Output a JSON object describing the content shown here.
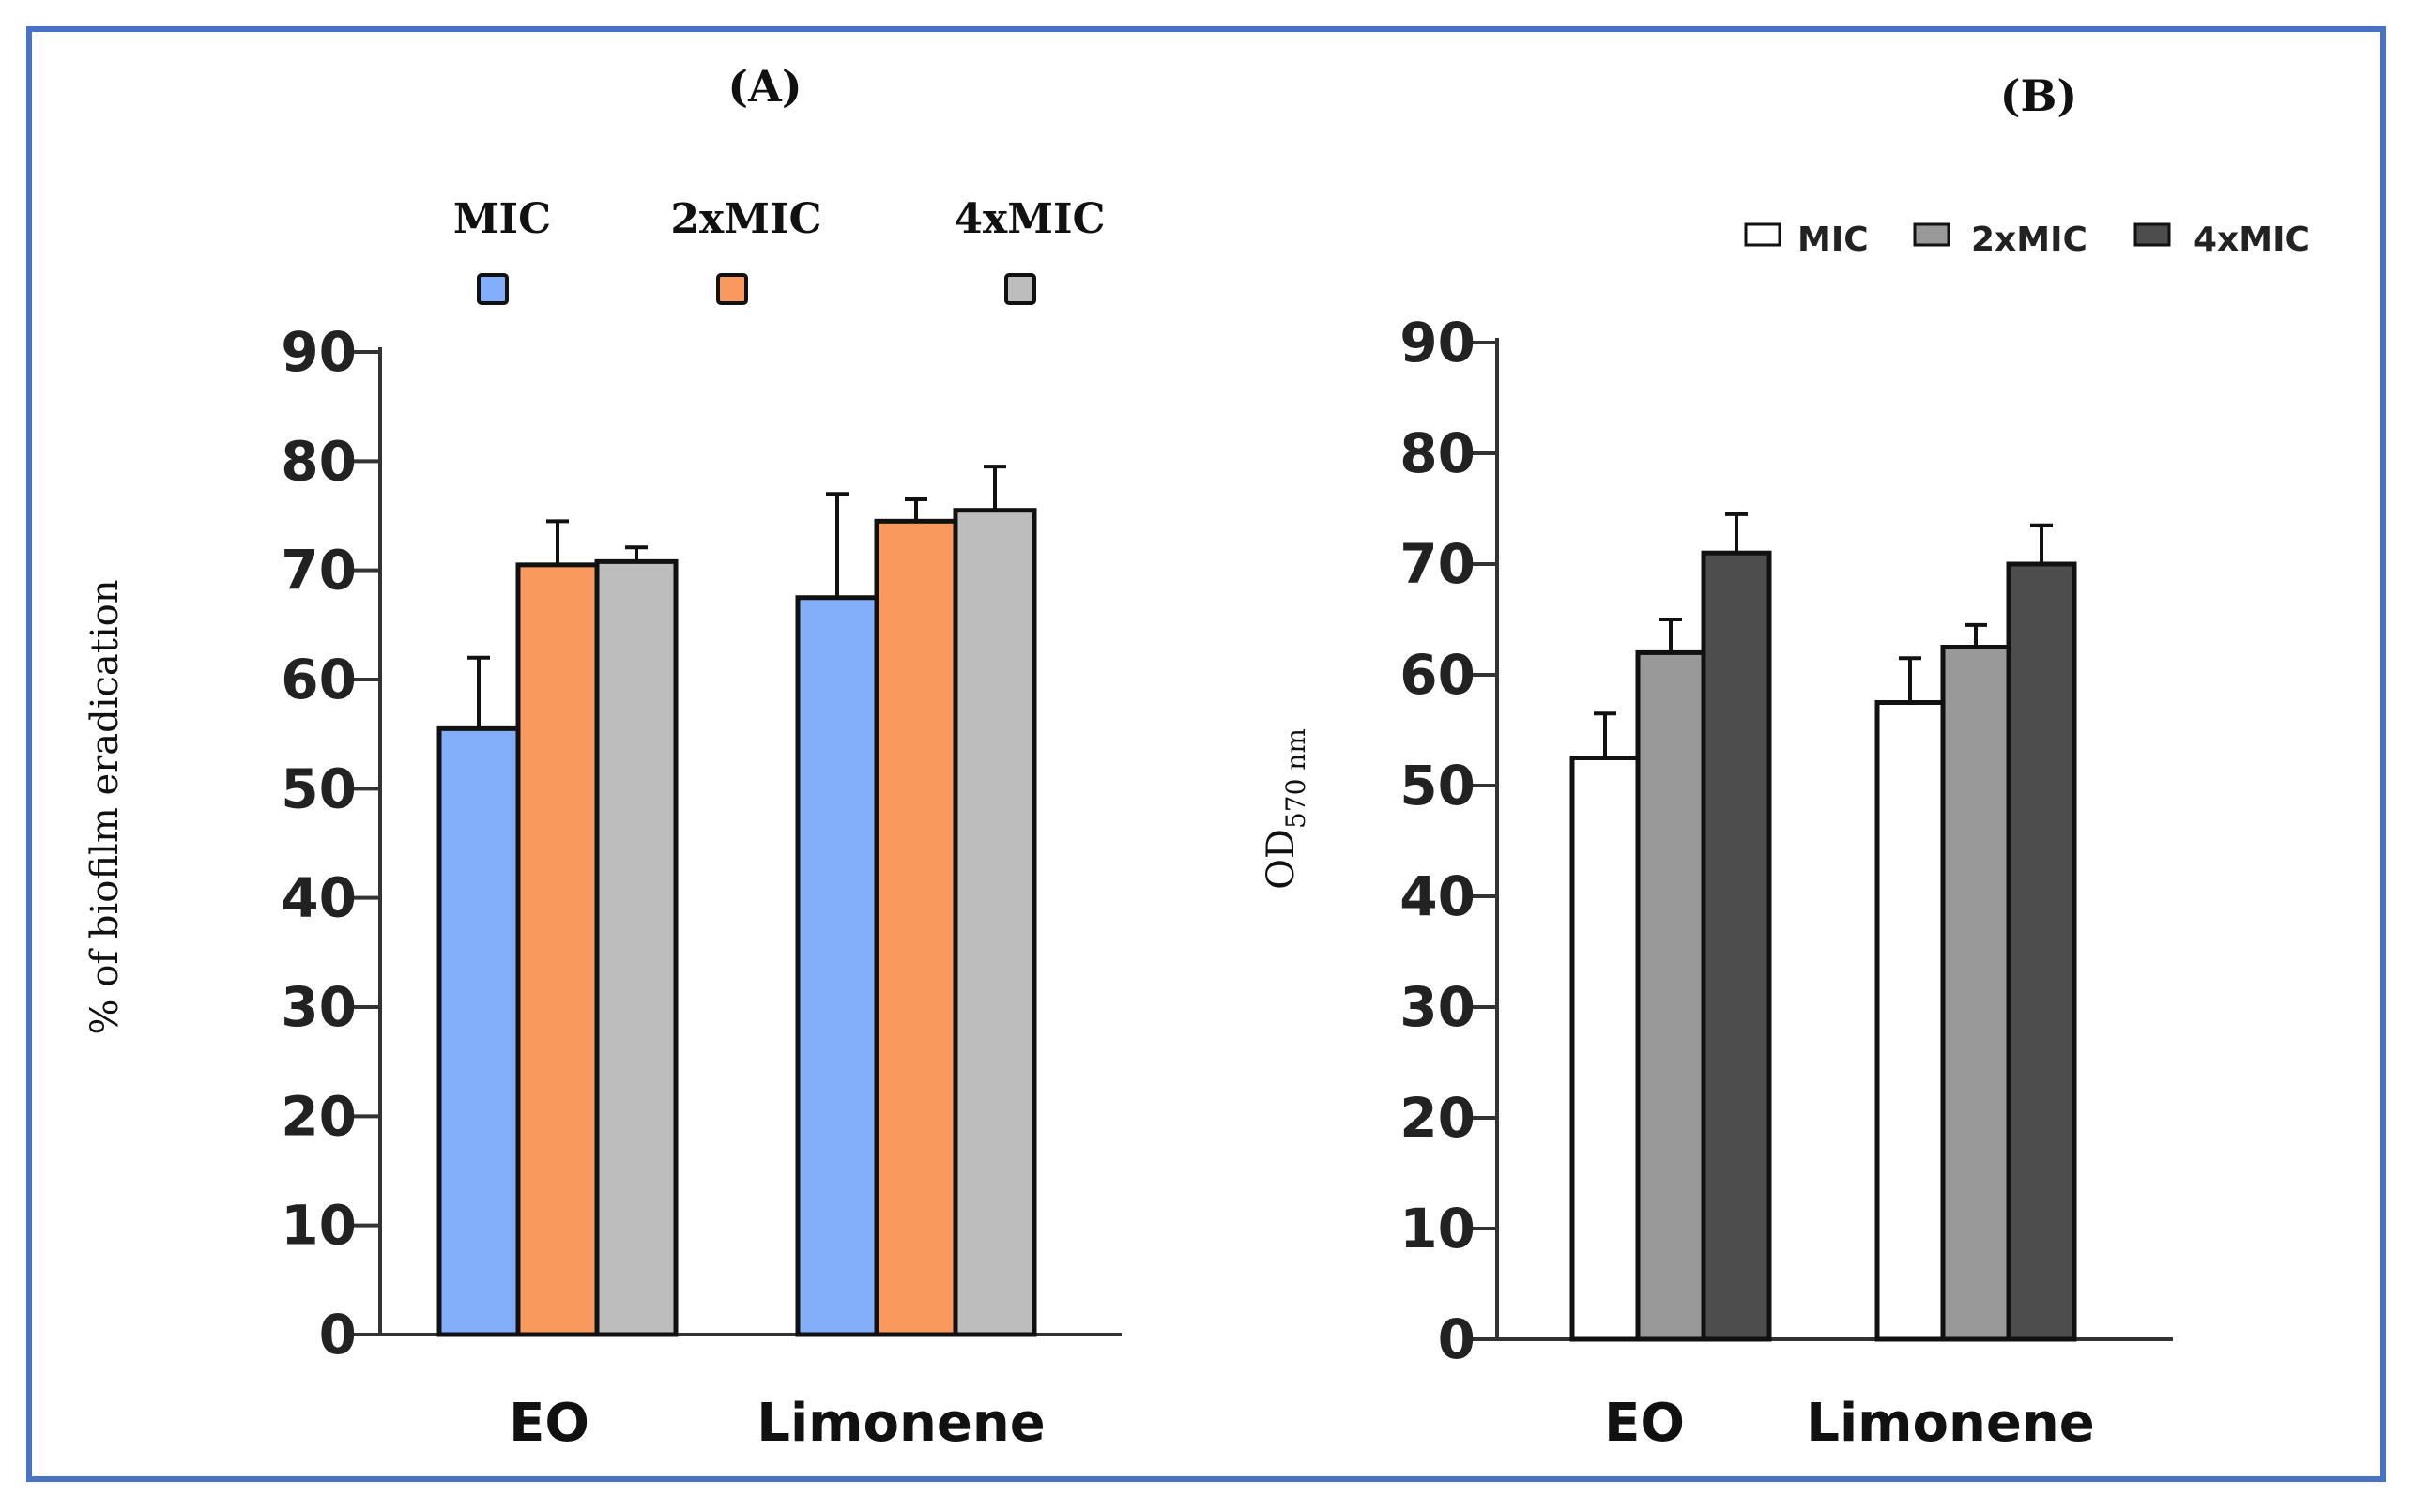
{
  "chart_data": [
    {
      "type": "bar",
      "panel_label": "(A)",
      "categories": [
        "EO",
        "Limonene"
      ],
      "ylabel": "% of biofilm eradication",
      "ylim": [
        0,
        90
      ],
      "yticks": [
        0,
        10,
        20,
        30,
        40,
        50,
        60,
        70,
        80,
        90
      ],
      "legend_placement": "top",
      "series": [
        {
          "name": "MIC",
          "color": "#82aefa",
          "values": [
            55.5,
            67.5
          ],
          "errors": [
            6.5,
            9.5
          ]
        },
        {
          "name": "2xMIC",
          "color": "#f9995e",
          "values": [
            70.5,
            74.5
          ],
          "errors": [
            4.0,
            2.0
          ]
        },
        {
          "name": "4xMIC",
          "color": "#bdbdbd",
          "values": [
            70.8,
            75.5
          ],
          "errors": [
            1.3,
            4.0
          ]
        }
      ]
    },
    {
      "type": "bar",
      "panel_label": "(B)",
      "categories": [
        "EO",
        "Limonene"
      ],
      "ylabel": "OD",
      "ylabel_sub": "570 nm",
      "ylim": [
        0,
        90
      ],
      "yticks": [
        0,
        10,
        20,
        30,
        40,
        50,
        60,
        70,
        80,
        90
      ],
      "legend_placement": "top-right",
      "series": [
        {
          "name": "MIC",
          "color": "#ffffff",
          "values": [
            52.5,
            57.5
          ],
          "errors": [
            4.0,
            4.0
          ]
        },
        {
          "name": "2xMIC",
          "color": "#999999",
          "values": [
            62.0,
            62.5
          ],
          "errors": [
            3.0,
            2.0
          ]
        },
        {
          "name": "4xMIC",
          "color": "#4d4d4d",
          "values": [
            71.0,
            70.0
          ],
          "errors": [
            3.5,
            3.5
          ]
        }
      ]
    }
  ]
}
